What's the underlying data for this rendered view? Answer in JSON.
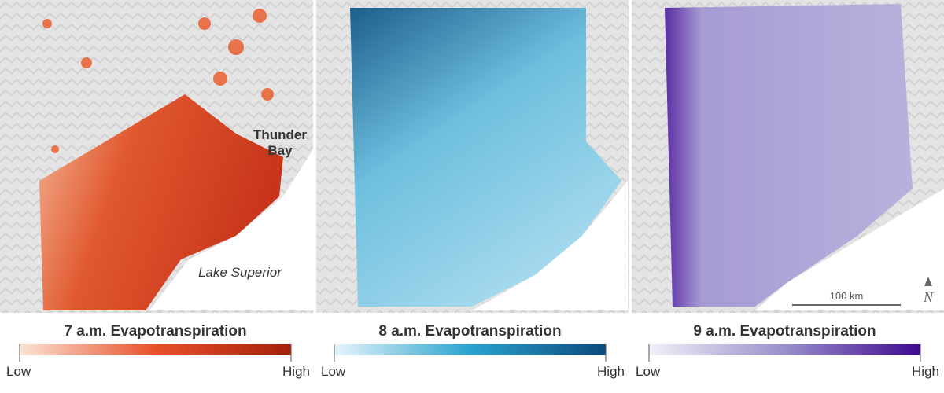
{
  "panels": [
    {
      "title": "7 a.m. Evapotranspiration",
      "low_label": "Low",
      "high_label": "High"
    },
    {
      "title": "8 a.m. Evapotranspiration",
      "low_label": "Low",
      "high_label": "High"
    },
    {
      "title": "9 a.m. Evapotranspiration",
      "low_label": "Low",
      "high_label": "High"
    }
  ],
  "map_labels": {
    "city": [
      "Thunder",
      "Bay"
    ],
    "lake": "Lake Superior"
  },
  "scale_bar": {
    "label": "100 km"
  },
  "north_arrow": {
    "label": "N"
  }
}
